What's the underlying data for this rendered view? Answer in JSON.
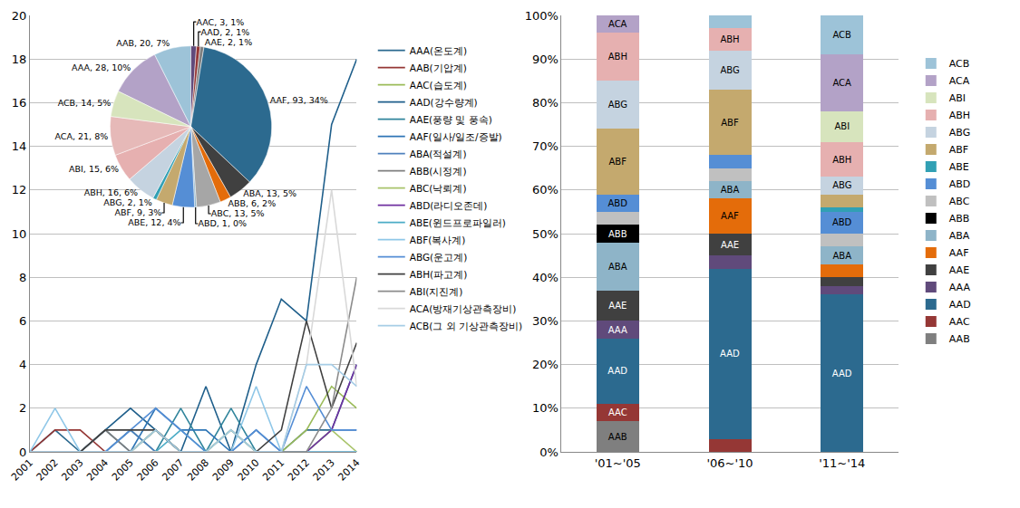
{
  "chart_data": [
    {
      "type": "line",
      "categories": [
        "2001",
        "2002",
        "2003",
        "2004",
        "2005",
        "2006",
        "2007",
        "2008",
        "2009",
        "2010",
        "2011",
        "2012",
        "2013",
        "2014"
      ],
      "ylim": [
        0,
        20
      ],
      "yticks": [
        0,
        2,
        4,
        6,
        8,
        10,
        12,
        14,
        16,
        18,
        20
      ],
      "grid": true,
      "legend": "right",
      "series": [
        {
          "name": "AAA(온도계)",
          "color": "#2c6a8f",
          "values": [
            0,
            1,
            0,
            1,
            0,
            1,
            0,
            0,
            1,
            0,
            0,
            1,
            1,
            4
          ]
        },
        {
          "name": "AAB(기압계)",
          "color": "#953735",
          "values": [
            0,
            1,
            1,
            0,
            0,
            0,
            0,
            0,
            0,
            0,
            0,
            0,
            0,
            0
          ]
        },
        {
          "name": "AAC(습도계)",
          "color": "#9bbb59",
          "values": [
            0,
            0,
            0,
            0,
            0,
            0,
            0,
            0,
            0,
            0,
            0,
            1,
            3,
            2
          ]
        },
        {
          "name": "AAD(강수량계)",
          "color": "#1f5f8b",
          "values": [
            0,
            0,
            0,
            1,
            2,
            1,
            0,
            3,
            0,
            4,
            7,
            6,
            15,
            18
          ]
        },
        {
          "name": "AAE(풍량 및 풍속)",
          "color": "#31859c",
          "values": [
            0,
            0,
            0,
            0,
            1,
            0,
            2,
            0,
            2,
            0,
            0,
            0,
            0,
            0
          ]
        },
        {
          "name": "AAF(일사/일조/증발)",
          "color": "#2e75b6",
          "values": [
            0,
            0,
            0,
            0,
            0,
            2,
            1,
            1,
            0,
            1,
            0,
            0,
            0,
            0
          ]
        },
        {
          "name": "ABA(적설계)",
          "color": "#4f81bd",
          "values": [
            0,
            0,
            0,
            0,
            1,
            0,
            0,
            0,
            0,
            0,
            0,
            0,
            1,
            1
          ]
        },
        {
          "name": "ABB(시정계)",
          "color": "#7f7f7f",
          "values": [
            0,
            0,
            0,
            1,
            0,
            1,
            0,
            0,
            0,
            0,
            0,
            0,
            0,
            0
          ]
        },
        {
          "name": "ABC(낙뢰계)",
          "color": "#a9c46b",
          "values": [
            0,
            0,
            0,
            0,
            0,
            1,
            0,
            0,
            1,
            0,
            0,
            0,
            1,
            0
          ]
        },
        {
          "name": "ABD(라디오존데)",
          "color": "#7030a0",
          "values": [
            0,
            0,
            0,
            0,
            0,
            0,
            0,
            0,
            0,
            0,
            0,
            0,
            1,
            4
          ]
        },
        {
          "name": "ABE(윈드프로파일러)",
          "color": "#4bacc6",
          "values": [
            0,
            0,
            0,
            0,
            0,
            0,
            1,
            0,
            0,
            0,
            0,
            0,
            0,
            0
          ]
        },
        {
          "name": "ABF(복사계)",
          "color": "#8fc7e8",
          "values": [
            0,
            2,
            0,
            0,
            0,
            0,
            0,
            0,
            0,
            3,
            0,
            0,
            0,
            0
          ]
        },
        {
          "name": "ABG(운고계)",
          "color": "#558ed5",
          "values": [
            0,
            0,
            0,
            0,
            1,
            2,
            1,
            0,
            0,
            1,
            0,
            3,
            1,
            1
          ]
        },
        {
          "name": "ABH(파고계)",
          "color": "#404040",
          "values": [
            0,
            0,
            0,
            1,
            1,
            1,
            0,
            0,
            0,
            0,
            1,
            6,
            2,
            5
          ]
        },
        {
          "name": "ABI(지진계)",
          "color": "#8c8c8c",
          "values": [
            0,
            0,
            0,
            0,
            0,
            0,
            0,
            0,
            0,
            0,
            0,
            0,
            2,
            8
          ]
        },
        {
          "name": "ACA(방재기상관측장비)",
          "color": "#d9d9d9",
          "values": [
            0,
            0,
            0,
            0,
            0,
            0,
            0,
            0,
            0,
            0,
            0,
            4,
            12,
            3
          ]
        },
        {
          "name": "ACB(그 외 기상관측장비)",
          "color": "#a6cde6",
          "values": [
            0,
            0,
            0,
            0,
            0,
            1,
            0,
            0,
            1,
            0,
            0,
            4,
            4,
            3
          ]
        }
      ]
    },
    {
      "type": "pie",
      "categories": [
        "AAA",
        "AAB",
        "AAC",
        "AAD",
        "AAE",
        "AAF",
        "ABA",
        "ABB",
        "ABC",
        "ABD",
        "ABE",
        "ABF",
        "ABG",
        "ABH",
        "ABI",
        "ACA",
        "ACB"
      ],
      "values": [
        28,
        20,
        3,
        2,
        2,
        93,
        13,
        6,
        13,
        1,
        12,
        9,
        2,
        16,
        15,
        21,
        14
      ],
      "value_labels": [
        "AAA, 28, 10%",
        "AAB, 20, 7%",
        "AAC, 3, 1%",
        "AAD, 2, 1%",
        "AAE, 2, 1%",
        "AAF, 93, 34%",
        "ABA, 13, 5%",
        "ABB, 6, 2%",
        "ABC, 13, 5%",
        "ABD, 1, 0%",
        "ABE, 12, 4%",
        "ABF, 9, 3%",
        "ABG, 2, 1%",
        "ABH, 16, 6%",
        "ABI, 15, 6%",
        "ACA, 21, 8%",
        "ACB, 14, 5%"
      ],
      "data_labels": true,
      "colors": [
        "#b3a2c7",
        "#9dc3d8",
        "#604a7b",
        "#953735",
        "#7f7f7f",
        "#2c6a8f",
        "#404040",
        "#e46c0a",
        "#a6a6a6",
        "#8eb4c8",
        "#558ed5",
        "#c4a96e",
        "#31a0b4",
        "#c5d3e0",
        "#e6b0b0",
        "#e6b9b8",
        "#d7e4bd"
      ]
    },
    {
      "type": "bar",
      "stacked": true,
      "grid": true,
      "legend": "right",
      "categories": [
        "'01~'05",
        "'06~'10",
        "'11~'14"
      ],
      "ylim": [
        0,
        100
      ],
      "yticks": [
        {
          "value": 0,
          "label": "0%"
        },
        {
          "value": 10,
          "label": "10%"
        },
        {
          "value": 20,
          "label": "20%"
        },
        {
          "value": 30,
          "label": "30%"
        },
        {
          "value": 40,
          "label": "40%"
        },
        {
          "value": 50,
          "label": "50%"
        },
        {
          "value": 60,
          "label": "60%"
        },
        {
          "value": 70,
          "label": "70%"
        },
        {
          "value": 80,
          "label": "80%"
        },
        {
          "value": 90,
          "label": "90%"
        },
        {
          "value": 100,
          "label": "100%"
        }
      ],
      "series": [
        {
          "name": "AAB",
          "color": "#7f7f7f",
          "values": [
            7,
            0,
            0
          ]
        },
        {
          "name": "AAC",
          "color": "#953735",
          "values": [
            4,
            3,
            0
          ]
        },
        {
          "name": "AAD",
          "color": "#2c6a8f",
          "values": [
            15,
            39,
            36
          ]
        },
        {
          "name": "AAA",
          "color": "#604a7b",
          "values": [
            4,
            3,
            2
          ]
        },
        {
          "name": "AAE",
          "color": "#404040",
          "values": [
            7,
            5,
            2
          ]
        },
        {
          "name": "AAF",
          "color": "#e46c0a",
          "values": [
            0,
            8,
            3
          ]
        },
        {
          "name": "ABA",
          "color": "#8eb4c8",
          "values": [
            11,
            4,
            4
          ]
        },
        {
          "name": "ABB",
          "color": "#000000",
          "values": [
            4,
            0,
            0
          ]
        },
        {
          "name": "ABC",
          "color": "#c0c0c0",
          "values": [
            3,
            3,
            3
          ]
        },
        {
          "name": "ABD",
          "color": "#558ed5",
          "values": [
            4,
            3,
            5
          ]
        },
        {
          "name": "ABE",
          "color": "#31a0b4",
          "values": [
            0,
            0,
            1
          ]
        },
        {
          "name": "ABF",
          "color": "#c4a96e",
          "values": [
            15,
            15,
            3
          ]
        },
        {
          "name": "ABG",
          "color": "#c5d3e0",
          "values": [
            11,
            9,
            4
          ]
        },
        {
          "name": "ABH",
          "color": "#e6b0b0",
          "values": [
            11,
            5,
            8
          ]
        },
        {
          "name": "ABI",
          "color": "#d7e4bd",
          "values": [
            0,
            0,
            7
          ]
        },
        {
          "name": "ACA",
          "color": "#b3a2c7",
          "values": [
            4,
            0,
            13
          ]
        },
        {
          "name": "ACB",
          "color": "#9dc3d8",
          "values": [
            0,
            3,
            9
          ]
        }
      ]
    }
  ]
}
